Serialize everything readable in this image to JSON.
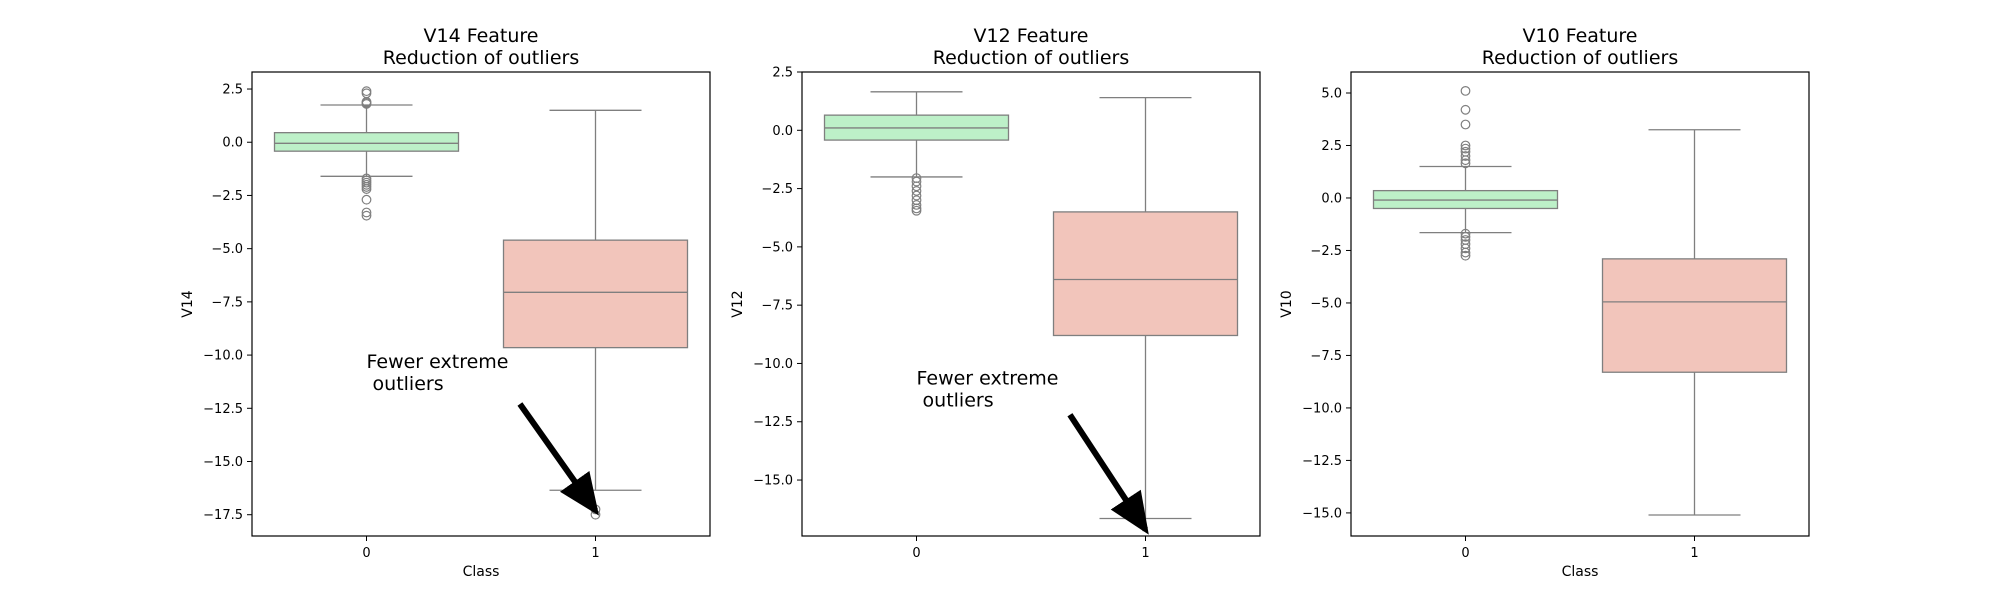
{
  "chart_data": [
    {
      "type": "box",
      "title": "V14 Feature\nReduction of outliers",
      "xlabel": "Class",
      "ylabel": "V14",
      "categories": [
        "0",
        "1"
      ],
      "ylim": [
        -18.5,
        3.3
      ],
      "yticks": [
        2.5,
        0.0,
        -2.5,
        -5.0,
        -7.5,
        -10.0,
        -12.5,
        -15.0,
        -17.5
      ],
      "ytick_labels": [
        "2.5",
        "0.0",
        "−2.5",
        "−5.0",
        "−7.5",
        "−10.0",
        "−12.5",
        "−15.0",
        "−17.5"
      ],
      "boxes": [
        {
          "category": "0",
          "color": "#bdf0c8",
          "q1": -0.42,
          "median": -0.05,
          "q3": 0.45,
          "whisker_low": -1.6,
          "whisker_high": 1.75,
          "outliers": [
            2.4,
            2.3,
            1.9,
            1.85,
            1.8,
            -1.7,
            -1.8,
            -1.9,
            -2.0,
            -2.1,
            -2.2,
            -2.7,
            -3.3,
            -3.45
          ]
        },
        {
          "category": "1",
          "color": "#f2c5bb",
          "q1": -9.65,
          "median": -7.05,
          "q3": -4.6,
          "whisker_low": -16.35,
          "whisker_high": 1.5,
          "outliers": [
            -17.25,
            -17.5
          ]
        }
      ],
      "annotation": {
        "text": "Fewer extreme\n outliers",
        "text_xy": [
          0,
          -10.6
        ],
        "arrow_from": [
          0.67,
          -12.3
        ],
        "arrow_to": [
          1.0,
          -17.5
        ]
      }
    },
    {
      "type": "box",
      "title": "V12 Feature\nReduction of outliers",
      "xlabel": "",
      "ylabel": "V12",
      "categories": [
        "0",
        "1"
      ],
      "ylim": [
        -17.4,
        2.5
      ],
      "yticks": [
        2.5,
        0.0,
        -2.5,
        -5.0,
        -7.5,
        -10.0,
        -12.5,
        -15.0
      ],
      "ytick_labels": [
        "2.5",
        "0.0",
        "−2.5",
        "−5.0",
        "−7.5",
        "−10.0",
        "−12.5",
        "−15.0"
      ],
      "boxes": [
        {
          "category": "0",
          "color": "#bdf0c8",
          "q1": -0.42,
          "median": 0.1,
          "q3": 0.65,
          "whisker_low": -2.0,
          "whisker_high": 1.65,
          "outliers": [
            -2.05,
            -2.2,
            -2.4,
            -2.6,
            -2.8,
            -3.0,
            -3.2,
            -3.35,
            -3.45
          ]
        },
        {
          "category": "1",
          "color": "#f2c5bb",
          "q1": -8.8,
          "median": -6.4,
          "q3": -3.5,
          "whisker_low": -16.65,
          "whisker_high": 1.4,
          "outliers": []
        }
      ],
      "annotation": {
        "text": "Fewer extreme\n outliers",
        "text_xy": [
          0,
          -10.9
        ],
        "arrow_from": [
          0.67,
          -12.2
        ],
        "arrow_to": [
          1.0,
          -17.3
        ]
      }
    },
    {
      "type": "box",
      "title": "V10 Feature\nReduction of outliers",
      "xlabel": "Class",
      "ylabel": "V10",
      "categories": [
        "0",
        "1"
      ],
      "ylim": [
        -16.1,
        6.0
      ],
      "yticks": [
        5.0,
        2.5,
        0.0,
        -2.5,
        -5.0,
        -7.5,
        -10.0,
        -12.5,
        -15.0
      ],
      "ytick_labels": [
        "5.0",
        "2.5",
        "0.0",
        "−2.5",
        "−5.0",
        "−7.5",
        "−10.0",
        "−12.5",
        "−15.0"
      ],
      "boxes": [
        {
          "category": "0",
          "color": "#bdf0c8",
          "q1": -0.5,
          "median": -0.1,
          "q3": 0.35,
          "whisker_low": -1.65,
          "whisker_high": 1.5,
          "outliers": [
            5.1,
            4.2,
            3.5,
            2.5,
            2.35,
            2.2,
            2.0,
            1.8,
            1.65,
            -1.7,
            -1.85,
            -2.0,
            -2.2,
            -2.4,
            -2.6,
            -2.75
          ]
        },
        {
          "category": "1",
          "color": "#f2c5bb",
          "q1": -8.3,
          "median": -4.95,
          "q3": -2.9,
          "whisker_low": -15.1,
          "whisker_high": 3.25,
          "outliers": []
        }
      ]
    }
  ]
}
